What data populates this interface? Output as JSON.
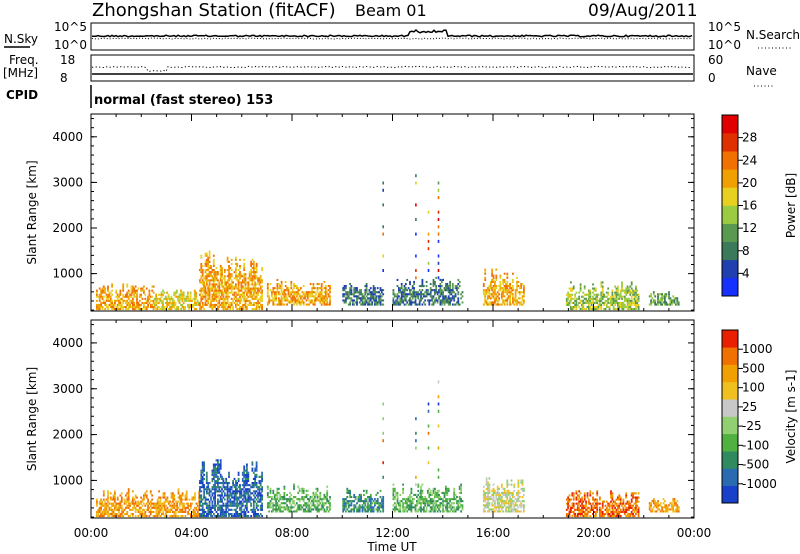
{
  "header": {
    "station": "Zhongshan Station (fitACF)",
    "beam": "Beam 01",
    "date": "09/Aug/2011"
  },
  "noise_panel": {
    "left_label": "N.Sky",
    "left_ticks": [
      "10^5",
      "10^0"
    ],
    "right_ticks": [
      "10^5",
      "10^0"
    ],
    "right_label": "N.Search"
  },
  "freq_panel": {
    "left_label_1": "Freq.",
    "left_label_2": "[MHz]",
    "left_ticks": [
      "18",
      "8"
    ],
    "right_ticks": [
      "60",
      "0"
    ],
    "right_label": "Nave"
  },
  "cpid": {
    "label": "CPID",
    "text": "normal (fast stereo) 153"
  },
  "x_axis": {
    "title": "Time UT",
    "ticks": [
      "00:00",
      "04:00",
      "08:00",
      "12:00",
      "16:00",
      "20:00",
      "00:00"
    ]
  },
  "chart_data": [
    {
      "type": "heatmap",
      "name": "power",
      "ylabel": "Slant Range [km]",
      "yticks": [
        "1000",
        "2000",
        "3000",
        "4000"
      ],
      "ylim": [
        180,
        4500
      ],
      "xlim": [
        0,
        24
      ],
      "colorbar": {
        "label": "Power [dB]",
        "ticks": [
          "4",
          "8",
          "12",
          "16",
          "20",
          "24",
          "28"
        ],
        "colors": [
          "#1530ff",
          "#2040b0",
          "#3a7a5a",
          "#5a9a50",
          "#9acb40",
          "#e8d020",
          "#f0a000",
          "#f07000",
          "#e03000",
          "#e00000"
        ]
      },
      "regions": [
        {
          "t": [
            0.2,
            2.5
          ],
          "r": [
            200,
            800
          ],
          "level": 6
        },
        {
          "t": [
            2.5,
            4.3
          ],
          "r": [
            200,
            650
          ],
          "level": 5
        },
        {
          "t": [
            4.3,
            6.8
          ],
          "r": [
            200,
            1500
          ],
          "level": 6
        },
        {
          "t": [
            7.0,
            9.5
          ],
          "r": [
            300,
            900
          ],
          "level": 6
        },
        {
          "t": [
            10.0,
            11.6
          ],
          "r": [
            300,
            800
          ],
          "level": 2
        },
        {
          "t": [
            12.0,
            14.8
          ],
          "r": [
            300,
            900
          ],
          "level": 2
        },
        {
          "t": [
            15.6,
            17.2
          ],
          "r": [
            300,
            1100
          ],
          "level": 6
        },
        {
          "t": [
            18.9,
            21.8
          ],
          "r": [
            200,
            800
          ],
          "level": 4
        },
        {
          "t": [
            22.2,
            23.4
          ],
          "r": [
            300,
            600
          ],
          "level": 3
        }
      ]
    },
    {
      "type": "heatmap",
      "name": "velocity",
      "ylabel": "Slant Range [km]",
      "yticks": [
        "1000",
        "2000",
        "3000",
        "4000"
      ],
      "ylim": [
        180,
        4500
      ],
      "xlim": [
        0,
        24
      ],
      "colorbar": {
        "label": "Velocity [m s-1]",
        "ticks": [
          "1000",
          "500",
          "100",
          "25",
          "-25",
          "-100",
          "-500",
          "-1000"
        ],
        "colors": [
          "#1840c8",
          "#2a6ab0",
          "#2f8a5e",
          "#50b040",
          "#90d070",
          "#c8c8c8",
          "#f0c020",
          "#f0a000",
          "#f07000",
          "#e82000"
        ]
      },
      "regions": [
        {
          "t": [
            0.2,
            4.3
          ],
          "r": [
            200,
            800
          ],
          "level": 7
        },
        {
          "t": [
            4.3,
            6.8
          ],
          "r": [
            200,
            1500
          ],
          "level": 1
        },
        {
          "t": [
            7.0,
            9.5
          ],
          "r": [
            300,
            900
          ],
          "level": 3
        },
        {
          "t": [
            10.0,
            11.6
          ],
          "r": [
            300,
            800
          ],
          "level": 2
        },
        {
          "t": [
            12.0,
            14.8
          ],
          "r": [
            300,
            900
          ],
          "level": 3
        },
        {
          "t": [
            15.6,
            17.2
          ],
          "r": [
            300,
            1100
          ],
          "level": 5
        },
        {
          "t": [
            18.9,
            21.8
          ],
          "r": [
            200,
            800
          ],
          "level": 8
        },
        {
          "t": [
            22.2,
            23.4
          ],
          "r": [
            300,
            600
          ],
          "level": 7
        }
      ]
    }
  ]
}
